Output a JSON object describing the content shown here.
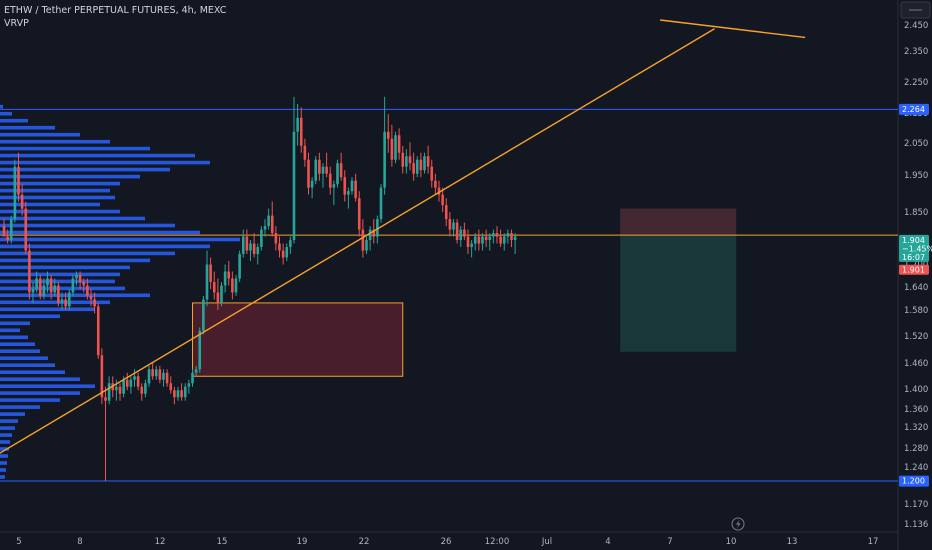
{
  "header": {
    "symbol_line": "ETHW / Tether PERPETUAL FUTURES, 4h, MEXC",
    "indicator": "VRVP"
  },
  "chart_data": {
    "type": "candlestick",
    "symbol": "ETHW / Tether PERPETUAL FUTURES",
    "interval": "4h",
    "exchange": "MEXC",
    "indicator": "VRVP",
    "x_tick_labels": [
      "5",
      "8",
      "12",
      "15",
      "19",
      "22",
      "26",
      "12:00",
      "Jul",
      "4",
      "7",
      "10",
      "13",
      "17"
    ],
    "y_tick_labels": [
      "2.450",
      "2.350",
      "2.250",
      "2.150",
      "2.050",
      "1.950",
      "1.850",
      "1.750",
      "1.700",
      "1.640",
      "1.580",
      "1.520",
      "1.460",
      "1.400",
      "1.360",
      "1.320",
      "1.280",
      "1.240",
      "1.170",
      "1.136"
    ],
    "ylim": [
      1.12,
      2.52
    ],
    "grid": false,
    "price_tags": {
      "upper_level": "2.264",
      "last_price": "1.904",
      "change_pct": "−1.45%",
      "countdown": "16:07",
      "stop_price": "1.901",
      "lower_level": "1.200"
    },
    "colors": {
      "background": "#131722",
      "up": "#26a69a",
      "down": "#ef5350",
      "level_line": "#2962ff",
      "volume_profile": "#2962ff",
      "trendline": "#f7a12c",
      "demand_zone_fill": "#5b2230",
      "demand_zone_border": "#f7a12c",
      "risk_zone": "#4a2a33",
      "reward_zone": "#1c3b3d"
    },
    "horizontal_levels": [
      {
        "price": 2.264,
        "color": "#2962ff"
      },
      {
        "price": 1.2,
        "color": "#2962ff"
      },
      {
        "price": 1.904,
        "color": "#f7a12c"
      }
    ],
    "volume_profile": [
      [
        2.27,
        3
      ],
      [
        2.25,
        12
      ],
      [
        2.23,
        28
      ],
      [
        2.21,
        55
      ],
      [
        2.19,
        80
      ],
      [
        2.17,
        110
      ],
      [
        2.15,
        150
      ],
      [
        2.13,
        195
      ],
      [
        2.11,
        210
      ],
      [
        2.09,
        170
      ],
      [
        2.07,
        140
      ],
      [
        2.05,
        120
      ],
      [
        2.03,
        110
      ],
      [
        2.01,
        115
      ],
      [
        1.99,
        100
      ],
      [
        1.97,
        120
      ],
      [
        1.95,
        145
      ],
      [
        1.93,
        175
      ],
      [
        1.91,
        200
      ],
      [
        1.89,
        240
      ],
      [
        1.87,
        210
      ],
      [
        1.85,
        175
      ],
      [
        1.83,
        150
      ],
      [
        1.81,
        130
      ],
      [
        1.79,
        120
      ],
      [
        1.77,
        115
      ],
      [
        1.75,
        125
      ],
      [
        1.73,
        150
      ],
      [
        1.71,
        110
      ],
      [
        1.69,
        95
      ],
      [
        1.67,
        60
      ],
      [
        1.65,
        30
      ],
      [
        1.63,
        20
      ],
      [
        1.61,
        28
      ],
      [
        1.59,
        35
      ],
      [
        1.57,
        40
      ],
      [
        1.55,
        48
      ],
      [
        1.53,
        55
      ],
      [
        1.51,
        65
      ],
      [
        1.49,
        80
      ],
      [
        1.47,
        95
      ],
      [
        1.45,
        80
      ],
      [
        1.43,
        60
      ],
      [
        1.41,
        40
      ],
      [
        1.39,
        25
      ],
      [
        1.37,
        18
      ],
      [
        1.35,
        15
      ],
      [
        1.33,
        12
      ],
      [
        1.31,
        10
      ],
      [
        1.29,
        9
      ],
      [
        1.27,
        8
      ],
      [
        1.25,
        7
      ],
      [
        1.23,
        6
      ],
      [
        1.21,
        5
      ]
    ],
    "candles": [
      [
        1.93,
        1.95,
        1.91,
        1.9
      ],
      [
        1.9,
        1.92,
        1.88,
        1.89
      ],
      [
        1.89,
        1.96,
        1.88,
        1.95
      ],
      [
        1.95,
        2.12,
        1.94,
        2.1
      ],
      [
        2.1,
        2.14,
        2.0,
        2.02
      ],
      [
        2.02,
        2.05,
        1.96,
        1.98
      ],
      [
        1.98,
        2.0,
        1.85,
        1.86
      ],
      [
        1.86,
        1.88,
        1.72,
        1.74
      ],
      [
        1.74,
        1.77,
        1.71,
        1.75
      ],
      [
        1.75,
        1.8,
        1.74,
        1.78
      ],
      [
        1.78,
        1.79,
        1.72,
        1.73
      ],
      [
        1.73,
        1.78,
        1.72,
        1.76
      ],
      [
        1.76,
        1.8,
        1.74,
        1.78
      ],
      [
        1.78,
        1.79,
        1.72,
        1.74
      ],
      [
        1.74,
        1.78,
        1.73,
        1.76
      ],
      [
        1.76,
        1.77,
        1.7,
        1.71
      ],
      [
        1.71,
        1.74,
        1.69,
        1.72
      ],
      [
        1.72,
        1.74,
        1.69,
        1.7
      ],
      [
        1.7,
        1.75,
        1.69,
        1.74
      ],
      [
        1.74,
        1.79,
        1.73,
        1.78
      ],
      [
        1.78,
        1.8,
        1.76,
        1.79
      ],
      [
        1.79,
        1.8,
        1.75,
        1.77
      ],
      [
        1.77,
        1.78,
        1.74,
        1.76
      ],
      [
        1.76,
        1.78,
        1.72,
        1.73
      ],
      [
        1.73,
        1.75,
        1.7,
        1.72
      ],
      [
        1.72,
        1.74,
        1.68,
        1.7
      ],
      [
        1.7,
        1.71,
        1.55,
        1.56
      ],
      [
        1.56,
        1.58,
        1.42,
        1.44
      ],
      [
        1.44,
        1.47,
        1.2,
        1.43
      ],
      [
        1.43,
        1.5,
        1.42,
        1.48
      ],
      [
        1.48,
        1.5,
        1.44,
        1.46
      ],
      [
        1.46,
        1.49,
        1.43,
        1.47
      ],
      [
        1.47,
        1.48,
        1.43,
        1.45
      ],
      [
        1.45,
        1.5,
        1.44,
        1.49
      ],
      [
        1.49,
        1.51,
        1.46,
        1.47
      ],
      [
        1.47,
        1.5,
        1.45,
        1.49
      ],
      [
        1.49,
        1.52,
        1.47,
        1.5
      ],
      [
        1.5,
        1.51,
        1.46,
        1.47
      ],
      [
        1.47,
        1.48,
        1.43,
        1.45
      ],
      [
        1.45,
        1.49,
        1.44,
        1.48
      ],
      [
        1.48,
        1.53,
        1.47,
        1.52
      ],
      [
        1.52,
        1.54,
        1.49,
        1.5
      ],
      [
        1.5,
        1.53,
        1.49,
        1.52
      ],
      [
        1.52,
        1.53,
        1.48,
        1.49
      ],
      [
        1.49,
        1.52,
        1.47,
        1.51
      ],
      [
        1.51,
        1.52,
        1.47,
        1.48
      ],
      [
        1.48,
        1.5,
        1.45,
        1.46
      ],
      [
        1.46,
        1.47,
        1.42,
        1.44
      ],
      [
        1.44,
        1.47,
        1.43,
        1.46
      ],
      [
        1.46,
        1.48,
        1.43,
        1.44
      ],
      [
        1.44,
        1.48,
        1.43,
        1.47
      ],
      [
        1.47,
        1.49,
        1.45,
        1.48
      ],
      [
        1.48,
        1.52,
        1.47,
        1.51
      ],
      [
        1.51,
        1.53,
        1.5,
        1.52
      ],
      [
        1.52,
        1.64,
        1.51,
        1.63
      ],
      [
        1.63,
        1.73,
        1.62,
        1.72
      ],
      [
        1.72,
        1.86,
        1.7,
        1.82
      ],
      [
        1.82,
        1.84,
        1.75,
        1.77
      ],
      [
        1.77,
        1.8,
        1.72,
        1.74
      ],
      [
        1.74,
        1.78,
        1.69,
        1.71
      ],
      [
        1.71,
        1.77,
        1.7,
        1.76
      ],
      [
        1.76,
        1.82,
        1.74,
        1.8
      ],
      [
        1.8,
        1.83,
        1.76,
        1.78
      ],
      [
        1.78,
        1.8,
        1.72,
        1.74
      ],
      [
        1.74,
        1.79,
        1.73,
        1.78
      ],
      [
        1.78,
        1.86,
        1.77,
        1.85
      ],
      [
        1.85,
        1.92,
        1.84,
        1.9
      ],
      [
        1.9,
        1.92,
        1.85,
        1.86
      ],
      [
        1.86,
        1.89,
        1.83,
        1.88
      ],
      [
        1.88,
        1.91,
        1.84,
        1.85
      ],
      [
        1.85,
        1.88,
        1.82,
        1.87
      ],
      [
        1.87,
        1.93,
        1.86,
        1.92
      ],
      [
        1.92,
        1.95,
        1.9,
        1.93
      ],
      [
        1.93,
        1.98,
        1.92,
        1.96
      ],
      [
        1.96,
        2.0,
        1.9,
        1.91
      ],
      [
        1.91,
        1.93,
        1.86,
        1.88
      ],
      [
        1.88,
        1.9,
        1.84,
        1.86
      ],
      [
        1.86,
        1.88,
        1.82,
        1.84
      ],
      [
        1.84,
        1.88,
        1.83,
        1.87
      ],
      [
        1.87,
        1.9,
        1.85,
        1.89
      ],
      [
        1.89,
        2.3,
        1.88,
        2.2
      ],
      [
        2.2,
        2.28,
        2.16,
        2.24
      ],
      [
        2.24,
        2.27,
        2.14,
        2.16
      ],
      [
        2.16,
        2.18,
        2.1,
        2.12
      ],
      [
        2.12,
        2.14,
        2.02,
        2.04
      ],
      [
        2.04,
        2.07,
        2.01,
        2.06
      ],
      [
        2.06,
        2.13,
        2.05,
        2.12
      ],
      [
        2.12,
        2.14,
        2.06,
        2.08
      ],
      [
        2.08,
        2.11,
        2.04,
        2.1
      ],
      [
        2.1,
        2.14,
        2.07,
        2.08
      ],
      [
        2.08,
        2.1,
        2.02,
        2.04
      ],
      [
        2.04,
        2.06,
        1.99,
        2.05
      ],
      [
        2.05,
        2.12,
        2.04,
        2.11
      ],
      [
        2.11,
        2.14,
        2.06,
        2.07
      ],
      [
        2.07,
        2.09,
        2.0,
        2.02
      ],
      [
        2.02,
        2.04,
        1.98,
        2.03
      ],
      [
        2.03,
        2.07,
        2.02,
        2.06
      ],
      [
        2.06,
        2.08,
        2.0,
        2.01
      ],
      [
        2.01,
        2.03,
        1.9,
        1.92
      ],
      [
        1.92,
        1.95,
        1.84,
        1.86
      ],
      [
        1.86,
        1.9,
        1.85,
        1.89
      ],
      [
        1.89,
        1.93,
        1.86,
        1.92
      ],
      [
        1.92,
        1.95,
        1.88,
        1.9
      ],
      [
        1.9,
        1.96,
        1.88,
        1.95
      ],
      [
        1.95,
        2.05,
        1.94,
        2.04
      ],
      [
        2.04,
        2.3,
        2.02,
        2.2
      ],
      [
        2.2,
        2.25,
        2.14,
        2.18
      ],
      [
        2.18,
        2.22,
        2.1,
        2.12
      ],
      [
        2.12,
        2.2,
        2.11,
        2.19
      ],
      [
        2.19,
        2.21,
        2.12,
        2.14
      ],
      [
        2.14,
        2.16,
        2.08,
        2.1
      ],
      [
        2.1,
        2.15,
        2.08,
        2.13
      ],
      [
        2.13,
        2.17,
        2.09,
        2.11
      ],
      [
        2.11,
        2.14,
        2.06,
        2.08
      ],
      [
        2.08,
        2.13,
        2.07,
        2.12
      ],
      [
        2.12,
        2.14,
        2.07,
        2.09
      ],
      [
        2.09,
        2.14,
        2.08,
        2.13
      ],
      [
        2.13,
        2.16,
        2.08,
        2.1
      ],
      [
        2.1,
        2.12,
        2.04,
        2.06
      ],
      [
        2.06,
        2.08,
        2.02,
        2.04
      ],
      [
        2.04,
        2.06,
        2.0,
        2.02
      ],
      [
        2.02,
        2.04,
        1.97,
        1.99
      ],
      [
        1.99,
        2.01,
        1.93,
        1.95
      ],
      [
        1.95,
        1.97,
        1.9,
        1.92
      ],
      [
        1.92,
        1.95,
        1.9,
        1.94
      ],
      [
        1.94,
        1.95,
        1.88,
        1.89
      ],
      [
        1.89,
        1.93,
        1.87,
        1.92
      ],
      [
        1.92,
        1.94,
        1.89,
        1.9
      ],
      [
        1.9,
        1.92,
        1.85,
        1.87
      ],
      [
        1.87,
        1.89,
        1.84,
        1.88
      ],
      [
        1.88,
        1.91,
        1.86,
        1.9
      ],
      [
        1.9,
        1.92,
        1.86,
        1.88
      ],
      [
        1.88,
        1.91,
        1.86,
        1.9
      ],
      [
        1.9,
        1.92,
        1.87,
        1.89
      ],
      [
        1.89,
        1.91,
        1.86,
        1.9
      ],
      [
        1.9,
        1.92,
        1.88,
        1.91
      ],
      [
        1.91,
        1.93,
        1.88,
        1.9
      ],
      [
        1.9,
        1.92,
        1.87,
        1.88
      ],
      [
        1.88,
        1.91,
        1.86,
        1.9
      ],
      [
        1.9,
        1.92,
        1.88,
        1.91
      ],
      [
        1.91,
        1.92,
        1.87,
        1.89
      ],
      [
        1.89,
        1.91,
        1.85,
        1.9
      ]
    ],
    "trendlines": [
      {
        "from": {
          "candle": -6,
          "price": 1.25
        },
        "to": {
          "candle": 196,
          "price": 2.495
        },
        "color": "#f7a12c"
      },
      {
        "from": {
          "candle": 181,
          "price": 2.52
        },
        "to": {
          "candle": 221,
          "price": 2.47
        },
        "color": "#f7a12c"
      }
    ],
    "demand_zone": {
      "from_candle": 52,
      "to_candle": 110,
      "top": 1.71,
      "bottom": 1.5
    },
    "position": {
      "from_candle": 170,
      "to_candle": 202,
      "entry": 1.904,
      "stop": 1.98,
      "target": 1.57
    }
  }
}
